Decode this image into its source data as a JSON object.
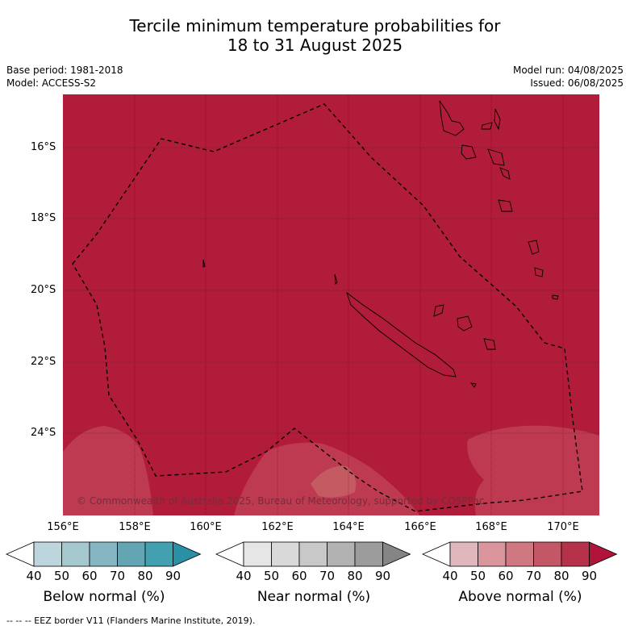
{
  "title": {
    "line1": "Tercile minimum temperature probabilities for",
    "line2": "18 to 31 August 2025"
  },
  "meta": {
    "base_period": "Base period: 1981-2018",
    "model": "Model: ACCESS-S2",
    "model_run": "Model run: 04/08/2025",
    "issued": "Issued: 06/08/2025"
  },
  "map": {
    "lat_labels": [
      "16°S",
      "18°S",
      "20°S",
      "22°S",
      "24°S"
    ],
    "lon_labels": [
      "156°E",
      "158°E",
      "160°E",
      "162°E",
      "164°E",
      "166°E",
      "168°E",
      "170°E"
    ],
    "fill_color": "#b01c3a",
    "light_patch_color": "#bf3f56",
    "copyright": "© Commonwealth of Australia 2025, Bureau of Meteorology, supported by COSPPac"
  },
  "colorbars": [
    {
      "name": "below",
      "label": "Below normal (%)",
      "ticks": [
        "40",
        "50",
        "60",
        "70",
        "80",
        "90"
      ],
      "colors": [
        "#ffffff",
        "#bdd5dc",
        "#a5c8cf",
        "#86b6c1",
        "#64a5b3",
        "#43a0b1",
        "#2a90a5"
      ]
    },
    {
      "name": "near",
      "label": "Near normal (%)",
      "ticks": [
        "40",
        "50",
        "60",
        "70",
        "80",
        "90"
      ],
      "colors": [
        "#ffffff",
        "#e6e6e6",
        "#d9d9d9",
        "#c8c8c8",
        "#b2b2b2",
        "#9c9c9c",
        "#858585"
      ]
    },
    {
      "name": "above",
      "label": "Above normal (%)",
      "ticks": [
        "40",
        "50",
        "60",
        "70",
        "80",
        "90"
      ],
      "colors": [
        "#ffffff",
        "#e0b6bd",
        "#d9949c",
        "#cf7881",
        "#c45765",
        "#b5324a",
        "#b0143a"
      ]
    }
  ],
  "footer": "--  --  -- EEZ border V11 (Flanders Marine Institute, 2019)."
}
